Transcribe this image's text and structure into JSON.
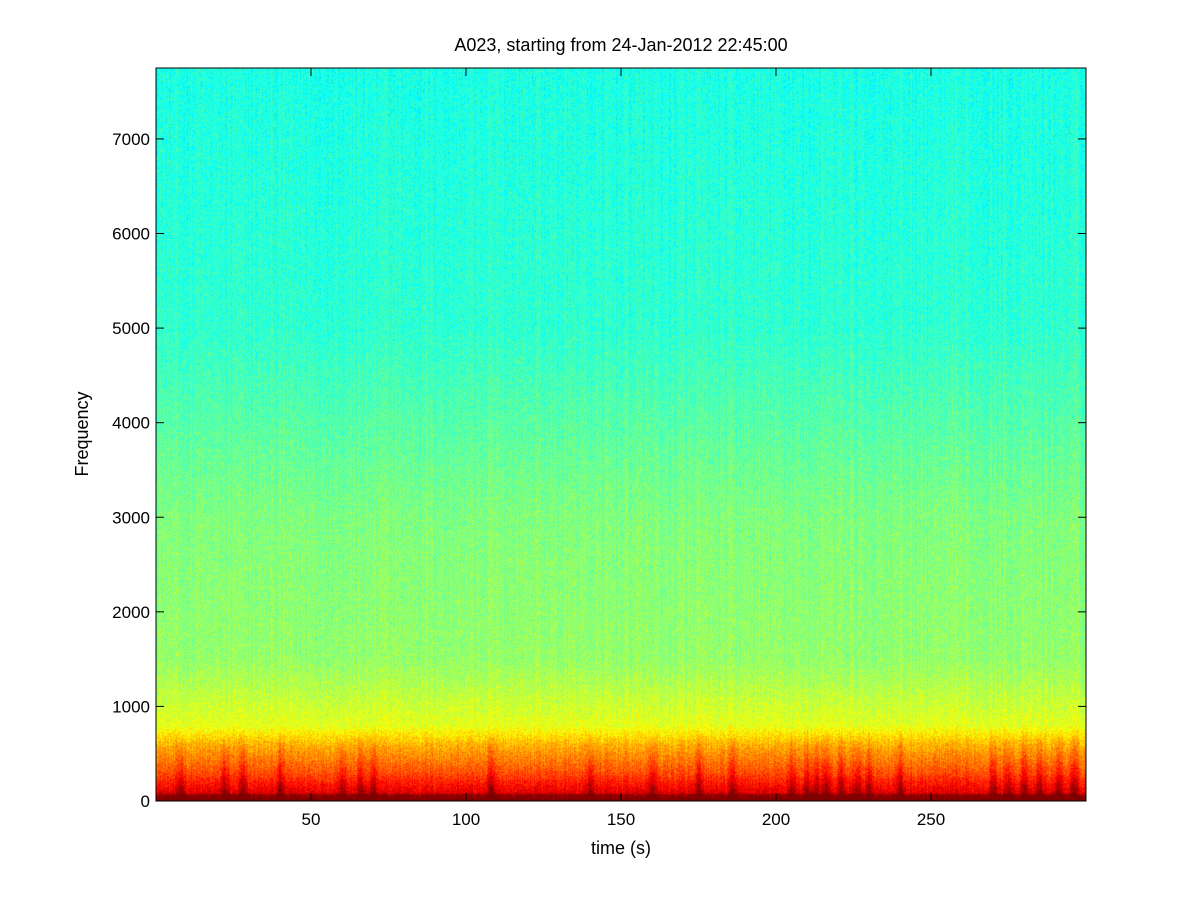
{
  "chart_data": {
    "type": "heatmap",
    "title": "A023, starting from 24-Jan-2012 22:45:00",
    "xlabel": "time (s)",
    "ylabel": "Frequency",
    "xlim": [
      0,
      300
    ],
    "ylim": [
      0,
      7750
    ],
    "x_ticks": [
      50,
      100,
      150,
      200,
      250
    ],
    "x_tick_labels": [
      "50",
      "100",
      "150",
      "200",
      "250"
    ],
    "y_ticks": [
      0,
      1000,
      2000,
      3000,
      4000,
      5000,
      6000,
      7000
    ],
    "y_tick_labels": [
      "0",
      "1000",
      "2000",
      "3000",
      "4000",
      "5000",
      "6000",
      "7000"
    ],
    "colormap": "jet",
    "colors": {
      "high_energy": "#c81e00",
      "mid_high": "#ff8a00",
      "mid": "#ffff00",
      "background": "#73f778",
      "low": "#3cd7ff"
    },
    "energy_profile_by_frequency": [
      {
        "freq": 0,
        "level": 1.0
      },
      {
        "freq": 100,
        "level": 0.9
      },
      {
        "freq": 300,
        "level": 0.8
      },
      {
        "freq": 600,
        "level": 0.7
      },
      {
        "freq": 800,
        "level": 0.6
      },
      {
        "freq": 1500,
        "level": 0.52
      },
      {
        "freq": 3000,
        "level": 0.5
      },
      {
        "freq": 5000,
        "level": 0.42
      },
      {
        "freq": 7750,
        "level": 0.4
      }
    ],
    "low_frequency_bursts_s": [
      8,
      22,
      28,
      40,
      60,
      66,
      70,
      108,
      140,
      160,
      175,
      186,
      205,
      210,
      213,
      216,
      221,
      226,
      230,
      240,
      270,
      275,
      280,
      285,
      291,
      296
    ]
  }
}
